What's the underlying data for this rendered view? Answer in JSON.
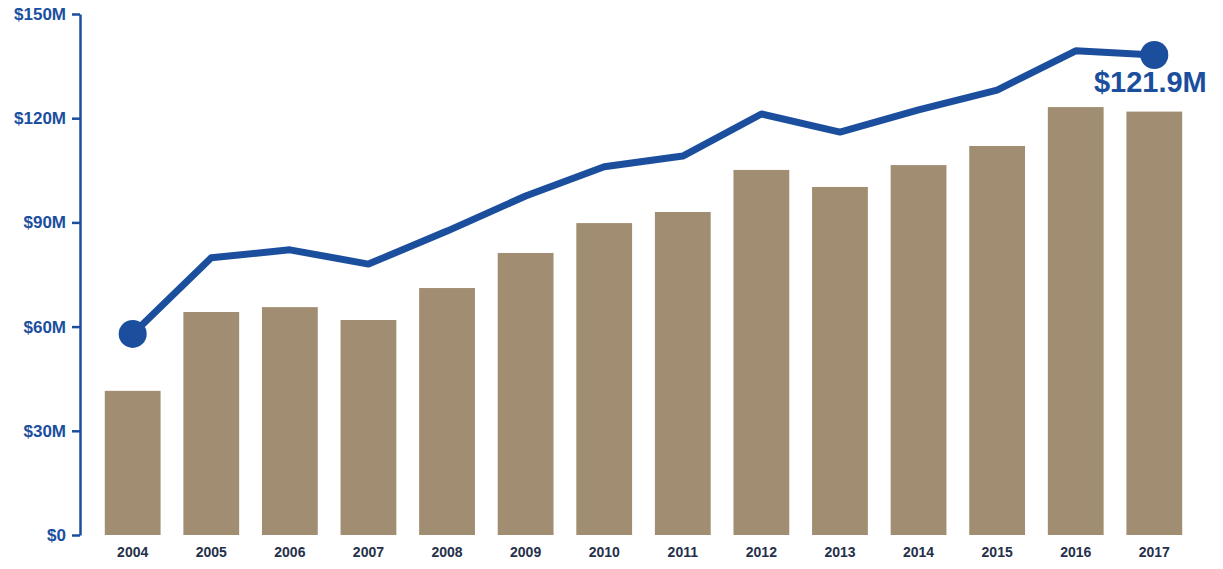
{
  "chart_data": {
    "type": "bar",
    "annotation": "$121.9M",
    "categories": [
      "2004",
      "2005",
      "2006",
      "2007",
      "2008",
      "2009",
      "2010",
      "2011",
      "2012",
      "2013",
      "2014",
      "2015",
      "2016",
      "2017"
    ],
    "series": [
      {
        "type": "bar",
        "color": "#a08d72",
        "values": [
          41.5,
          64.2,
          65.6,
          61.9,
          71.1,
          81.2,
          89.8,
          93.0,
          105.1,
          100.2,
          106.5,
          112.0,
          123.2,
          121.9
        ]
      },
      {
        "type": "line",
        "color": "#1b4f9e",
        "marker": "circle",
        "values": [
          57.9,
          79.8,
          82.1,
          78.0,
          87.5,
          97.6,
          106.0,
          109.1,
          121.2,
          116.0,
          122.4,
          128.1,
          139.4,
          138.2
        ]
      }
    ],
    "ylim": [
      0,
      150
    ],
    "yticks": [
      {
        "value": 0,
        "label": "$0"
      },
      {
        "value": 30,
        "label": "$30M"
      },
      {
        "value": 60,
        "label": "$60M"
      },
      {
        "value": 90,
        "label": "$90M"
      },
      {
        "value": 120,
        "label": "$120M"
      },
      {
        "value": 150,
        "label": "$150M"
      }
    ]
  }
}
